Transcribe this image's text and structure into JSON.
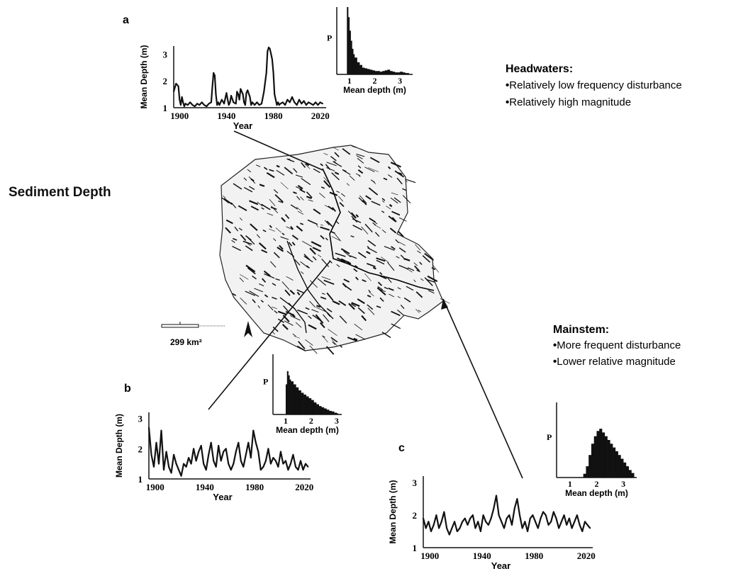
{
  "title": "Sediment Depth",
  "headwaters": {
    "heading": "Headwaters:",
    "bullets": [
      "Relatively low frequency disturbance",
      "Relatively high magnitude"
    ]
  },
  "mainstem": {
    "heading": "Mainstem:",
    "bullets": [
      "More frequent disturbance",
      "Lower relative magnitude"
    ]
  },
  "scale_bar": {
    "label": "299 km²"
  },
  "chart_data": [
    {
      "panel": "a",
      "type": "line",
      "xlabel": "Year",
      "ylabel": "Mean Depth (m)",
      "xticks": [
        "1900",
        "1940",
        "1980",
        "2020"
      ],
      "yticks": [
        "1",
        "2",
        "3"
      ],
      "xlim": [
        1895,
        2025
      ],
      "ylim": [
        1,
        3.3
      ],
      "x": [
        1895,
        1897,
        1899,
        1900,
        1901,
        1902,
        1903,
        1904,
        1905,
        1907,
        1909,
        1911,
        1913,
        1915,
        1917,
        1919,
        1921,
        1923,
        1925,
        1927,
        1928,
        1929,
        1930,
        1931,
        1932,
        1933,
        1934,
        1936,
        1938,
        1940,
        1941,
        1942,
        1943,
        1944,
        1946,
        1948,
        1949,
        1950,
        1951,
        1952,
        1954,
        1955,
        1956,
        1957,
        1958,
        1960,
        1961,
        1962,
        1963,
        1964,
        1966,
        1968,
        1970,
        1972,
        1974,
        1975,
        1976,
        1977,
        1978,
        1979,
        1980,
        1981,
        1982,
        1983,
        1984,
        1985,
        1986,
        1988,
        1990,
        1992,
        1994,
        1996,
        1998,
        2000,
        2002,
        2004,
        2006,
        2008,
        2010,
        2012,
        2014,
        2016,
        2018,
        2020,
        2022
      ],
      "y": [
        1.6,
        1.9,
        1.8,
        1.3,
        1.1,
        1.4,
        1.2,
        1.05,
        1.15,
        1.1,
        1.2,
        1.1,
        1.05,
        1.15,
        1.1,
        1.2,
        1.1,
        1.05,
        1.15,
        1.2,
        1.8,
        2.3,
        2.2,
        1.5,
        1.1,
        1.2,
        1.1,
        1.3,
        1.15,
        1.55,
        1.3,
        1.1,
        1.2,
        1.45,
        1.2,
        1.15,
        1.6,
        1.5,
        1.3,
        1.7,
        1.5,
        1.2,
        1.1,
        1.55,
        1.65,
        1.4,
        1.1,
        1.2,
        1.15,
        1.1,
        1.2,
        1.1,
        1.15,
        1.6,
        2.3,
        3.1,
        3.25,
        3.2,
        3.0,
        2.8,
        2.3,
        1.5,
        1.3,
        1.1,
        1.2,
        1.1,
        1.15,
        1.2,
        1.1,
        1.3,
        1.2,
        1.4,
        1.2,
        1.1,
        1.3,
        1.15,
        1.25,
        1.1,
        1.2,
        1.15,
        1.1,
        1.2,
        1.1,
        1.2,
        1.15
      ]
    },
    {
      "panel": "a-histogram",
      "type": "bar",
      "xlabel": "Mean depth (m)",
      "ylabel": "P",
      "xticks": [
        "1",
        "2",
        "3"
      ],
      "xlim": [
        0.5,
        3.5
      ],
      "ylim": [
        0,
        1
      ],
      "x": [
        0.9,
        0.95,
        1.0,
        1.05,
        1.1,
        1.15,
        1.2,
        1.3,
        1.4,
        1.5,
        1.6,
        1.7,
        1.8,
        1.9,
        2.0,
        2.1,
        2.2,
        2.3,
        2.4,
        2.5,
        2.6,
        2.7,
        2.8,
        2.9,
        3.0,
        3.1,
        3.2,
        3.3
      ],
      "values": [
        1.0,
        0.85,
        0.65,
        0.5,
        0.38,
        0.3,
        0.25,
        0.18,
        0.14,
        0.1,
        0.09,
        0.08,
        0.07,
        0.06,
        0.05,
        0.05,
        0.04,
        0.05,
        0.06,
        0.07,
        0.05,
        0.04,
        0.03,
        0.03,
        0.04,
        0.03,
        0.02,
        0.02
      ]
    },
    {
      "panel": "b",
      "type": "line",
      "xlabel": "Year",
      "ylabel": "Mean Depth (m)",
      "xticks": [
        "1900",
        "1940",
        "1980",
        "2020"
      ],
      "yticks": [
        "1",
        "2",
        "3"
      ],
      "xlim": [
        1895,
        2025
      ],
      "ylim": [
        1,
        3.2
      ],
      "x": [
        1895,
        1897,
        1899,
        1901,
        1903,
        1905,
        1907,
        1909,
        1911,
        1913,
        1915,
        1917,
        1919,
        1921,
        1923,
        1925,
        1927,
        1929,
        1931,
        1933,
        1935,
        1937,
        1939,
        1941,
        1943,
        1945,
        1947,
        1949,
        1951,
        1953,
        1955,
        1957,
        1959,
        1961,
        1963,
        1965,
        1967,
        1969,
        1971,
        1973,
        1975,
        1977,
        1979,
        1981,
        1983,
        1985,
        1987,
        1989,
        1991,
        1993,
        1995,
        1997,
        1999,
        2001,
        2003,
        2005,
        2007,
        2009,
        2011,
        2013,
        2015,
        2017,
        2019,
        2021,
        2023
      ],
      "y": [
        2.7,
        1.8,
        1.4,
        2.2,
        1.5,
        2.6,
        1.3,
        1.9,
        1.4,
        1.2,
        1.8,
        1.5,
        1.3,
        1.1,
        1.5,
        1.4,
        1.7,
        1.5,
        2.0,
        1.6,
        1.9,
        2.1,
        1.5,
        1.3,
        1.8,
        2.2,
        1.6,
        1.4,
        2.1,
        1.6,
        1.9,
        2.0,
        1.5,
        1.3,
        1.5,
        1.9,
        2.2,
        1.6,
        1.4,
        1.8,
        2.2,
        1.7,
        2.6,
        2.2,
        1.9,
        1.3,
        1.4,
        1.6,
        2.0,
        1.5,
        1.7,
        1.6,
        1.4,
        1.9,
        1.5,
        1.6,
        1.3,
        1.5,
        1.8,
        1.4,
        1.3,
        1.6,
        1.3,
        1.5,
        1.4
      ]
    },
    {
      "panel": "b-histogram",
      "type": "bar",
      "xlabel": "Mean depth (m)",
      "ylabel": "P",
      "xticks": [
        "1",
        "2",
        "3"
      ],
      "xlim": [
        0.5,
        3.2
      ],
      "ylim": [
        0,
        1
      ],
      "x": [
        1.0,
        1.05,
        1.1,
        1.15,
        1.2,
        1.3,
        1.4,
        1.5,
        1.6,
        1.7,
        1.8,
        1.9,
        2.0,
        2.1,
        2.2,
        2.3,
        2.4,
        2.5,
        2.6,
        2.7,
        2.8,
        2.9,
        3.0
      ],
      "values": [
        0.5,
        0.72,
        0.65,
        0.58,
        0.55,
        0.5,
        0.45,
        0.4,
        0.36,
        0.33,
        0.3,
        0.27,
        0.24,
        0.2,
        0.17,
        0.14,
        0.12,
        0.1,
        0.08,
        0.06,
        0.05,
        0.03,
        0.02
      ]
    },
    {
      "panel": "c",
      "type": "line",
      "xlabel": "Year",
      "ylabel": "Mean Depth (m)",
      "xticks": [
        "1900",
        "1940",
        "1980",
        "2020"
      ],
      "yticks": [
        "1",
        "2",
        "3"
      ],
      "xlim": [
        1895,
        2025
      ],
      "ylim": [
        1,
        3.2
      ],
      "x": [
        1895,
        1897,
        1899,
        1901,
        1903,
        1905,
        1907,
        1909,
        1911,
        1913,
        1915,
        1917,
        1919,
        1921,
        1923,
        1925,
        1927,
        1929,
        1931,
        1933,
        1935,
        1937,
        1939,
        1941,
        1943,
        1945,
        1947,
        1949,
        1951,
        1953,
        1955,
        1957,
        1959,
        1961,
        1963,
        1965,
        1967,
        1969,
        1971,
        1973,
        1975,
        1977,
        1979,
        1981,
        1983,
        1985,
        1987,
        1989,
        1991,
        1993,
        1995,
        1997,
        1999,
        2001,
        2003,
        2005,
        2007,
        2009,
        2011,
        2013,
        2015,
        2017,
        2019,
        2021,
        2023
      ],
      "y": [
        1.9,
        1.6,
        1.8,
        1.5,
        1.7,
        2.0,
        1.6,
        1.8,
        2.1,
        1.6,
        1.4,
        1.6,
        1.8,
        1.5,
        1.6,
        1.8,
        1.9,
        1.7,
        1.9,
        2.0,
        1.6,
        1.8,
        1.5,
        2.0,
        1.8,
        1.7,
        1.9,
        2.2,
        2.6,
        2.0,
        1.8,
        1.6,
        1.9,
        2.0,
        1.7,
        2.2,
        2.5,
        2.0,
        1.6,
        1.8,
        1.5,
        1.9,
        2.0,
        1.8,
        1.6,
        1.9,
        2.1,
        2.0,
        1.7,
        1.8,
        2.1,
        1.9,
        1.6,
        1.8,
        2.0,
        1.7,
        1.9,
        1.6,
        1.8,
        2.0,
        1.7,
        1.5,
        1.8,
        1.7,
        1.6
      ]
    },
    {
      "panel": "c-histogram",
      "type": "bar",
      "xlabel": "Mean depth (m)",
      "ylabel": "P",
      "xticks": [
        "1",
        "2",
        "3"
      ],
      "xlim": [
        0.5,
        3.5
      ],
      "ylim": [
        0,
        1
      ],
      "x": [
        1.5,
        1.6,
        1.7,
        1.8,
        1.9,
        2.0,
        2.1,
        2.2,
        2.3,
        2.4,
        2.5,
        2.6,
        2.7,
        2.8,
        2.9,
        3.0,
        3.1,
        3.2,
        3.3
      ],
      "values": [
        0.05,
        0.15,
        0.3,
        0.45,
        0.55,
        0.62,
        0.65,
        0.6,
        0.55,
        0.5,
        0.45,
        0.4,
        0.35,
        0.3,
        0.25,
        0.2,
        0.15,
        0.1,
        0.06
      ]
    }
  ],
  "panel_labels": {
    "a": "a",
    "b": "b",
    "c": "c"
  }
}
